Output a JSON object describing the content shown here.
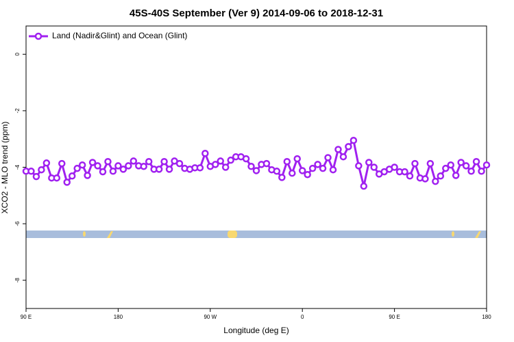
{
  "chart_data": {
    "type": "line",
    "title": "45S-40S September (Ver 9)   2014-09-06 to 2018-12-31",
    "x_label": "Longitude (deg E)",
    "y_label": "XCO2 - MLO trend (ppm)",
    "xlim": [
      90,
      540
    ],
    "ylim": [
      -9,
      1
    ],
    "xticks": [
      {
        "value": 90,
        "label": "90 E"
      },
      180,
      {
        "value": 270,
        "label": "90 W"
      },
      {
        "value": 360,
        "label": "0"
      },
      {
        "value": 450,
        "label": "90 E"
      },
      {
        "value": 540,
        "label": "180"
      }
    ],
    "yticks": [
      0,
      -2,
      -4,
      -6,
      -8
    ],
    "legend_position": "top-left",
    "series": [
      {
        "name": "Land (Nadir&Glint) and Ocean (Glint)",
        "color": "#a020f0",
        "x": [
          90,
          95,
          100,
          105,
          110,
          115,
          120,
          125,
          130,
          135,
          140,
          145,
          150,
          155,
          160,
          165,
          170,
          175,
          180,
          185,
          190,
          195,
          200,
          205,
          210,
          215,
          220,
          225,
          230,
          235,
          240,
          245,
          250,
          255,
          260,
          265,
          270,
          275,
          280,
          285,
          290,
          295,
          300,
          305,
          310,
          315,
          320,
          325,
          330,
          335,
          340,
          345,
          350,
          355,
          360,
          365,
          370,
          375,
          380,
          385,
          390,
          395,
          400,
          405,
          410,
          415,
          420,
          425,
          430,
          435,
          440,
          445,
          450,
          455,
          460,
          465,
          470,
          475,
          480,
          485,
          490,
          495,
          500,
          505,
          510,
          515,
          520,
          525,
          530,
          535,
          540
        ],
        "values": [
          -4.14,
          -4.14,
          -4.33,
          -4.09,
          -3.85,
          -4.38,
          -4.38,
          -3.87,
          -4.53,
          -4.31,
          -4.04,
          -3.92,
          -4.29,
          -3.83,
          -3.95,
          -4.16,
          -3.8,
          -4.14,
          -3.95,
          -4.07,
          -3.95,
          -3.78,
          -3.95,
          -3.97,
          -3.8,
          -4.07,
          -4.07,
          -3.8,
          -4.07,
          -3.78,
          -3.87,
          -4.04,
          -4.07,
          -4.02,
          -4.02,
          -3.51,
          -3.97,
          -3.9,
          -3.78,
          -4.0,
          -3.75,
          -3.63,
          -3.63,
          -3.7,
          -3.97,
          -4.12,
          -3.9,
          -3.87,
          -4.09,
          -4.14,
          -4.36,
          -3.8,
          -4.21,
          -3.7,
          -4.12,
          -4.26,
          -4.04,
          -3.9,
          -4.04,
          -3.66,
          -4.09,
          -3.37,
          -3.63,
          -3.27,
          -3.05,
          -3.95,
          -4.67,
          -3.83,
          -4.0,
          -4.24,
          -4.16,
          -4.07,
          -4.0,
          -4.16,
          -4.16,
          -4.31,
          -3.87,
          -4.38,
          -4.41,
          -3.87,
          -4.5,
          -4.31,
          -4.04,
          -3.92,
          -4.29,
          -3.83,
          -3.95,
          -4.14,
          -3.8,
          -4.14,
          -3.92
        ]
      }
    ]
  }
}
